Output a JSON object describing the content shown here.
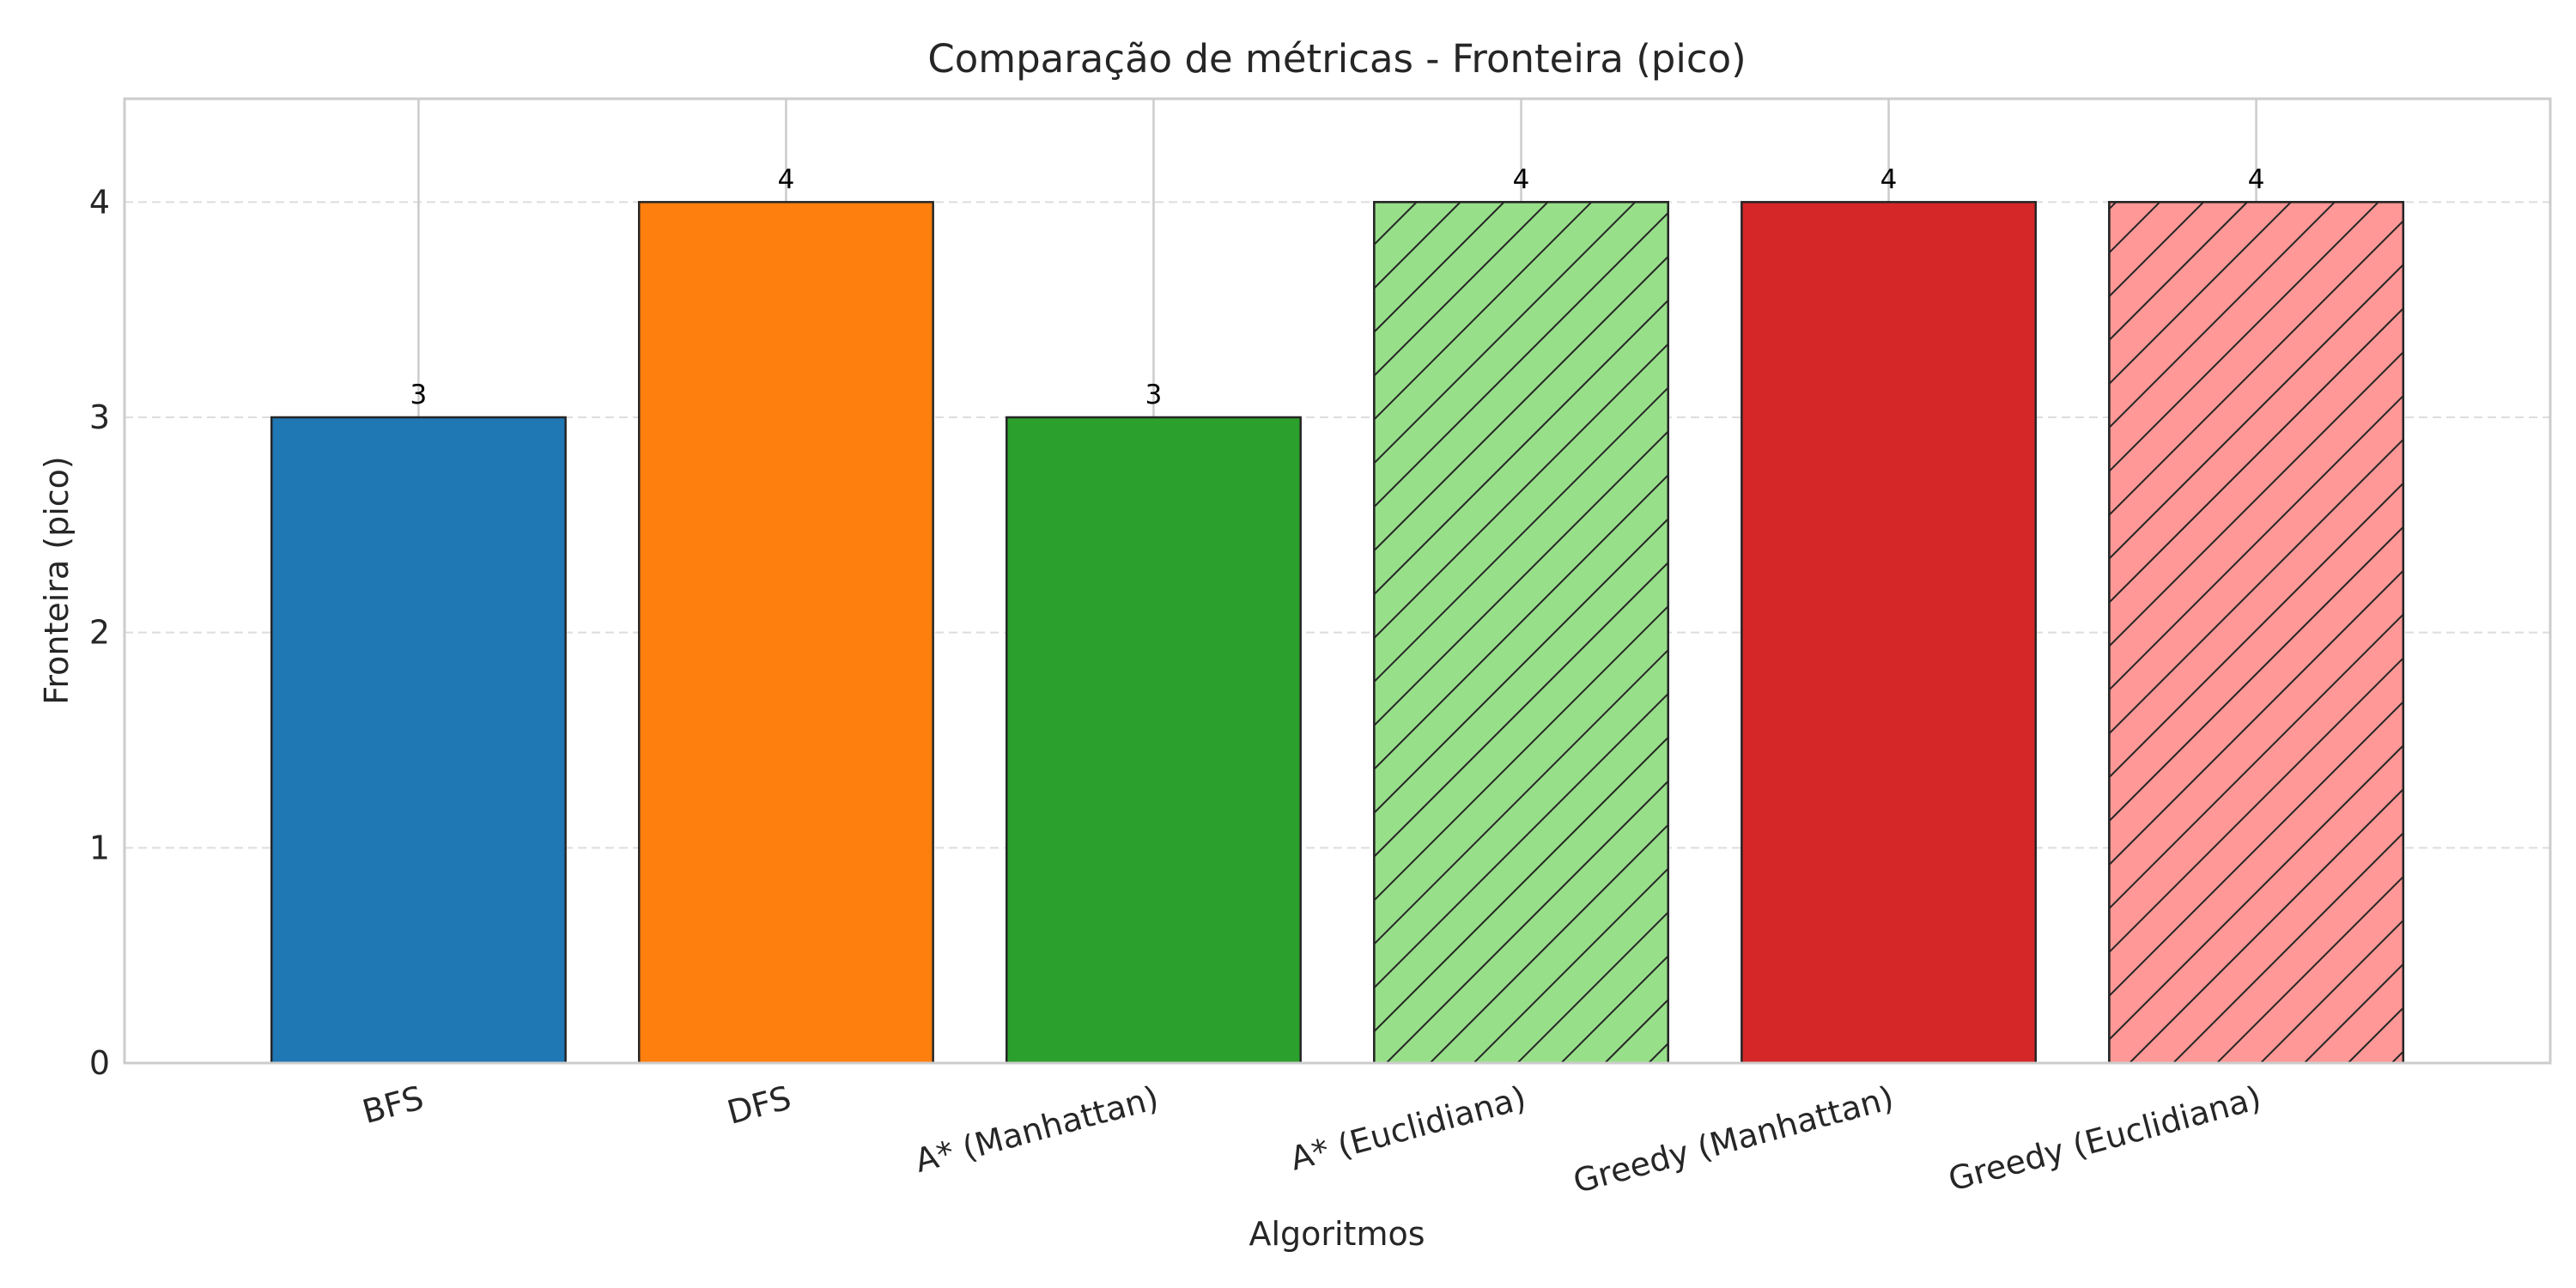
{
  "chart_data": {
    "type": "bar",
    "title": "Comparação de métricas - Fronteira (pico)",
    "xlabel": "Algoritmos",
    "ylabel": "Fronteira (pico)",
    "categories": [
      "BFS",
      "DFS",
      "A* (Manhattan)",
      "A* (Euclidiana)",
      "Greedy (Manhattan)",
      "Greedy (Euclidiana)"
    ],
    "values": [
      3,
      4,
      3,
      4,
      4,
      4
    ],
    "data_labels": [
      "3",
      "4",
      "3",
      "4",
      "4",
      "4"
    ],
    "colors": [
      "#1f77b4",
      "#ff7f0e",
      "#2ca02c",
      "#98df8a",
      "#d62728",
      "#ff9896"
    ],
    "hatched": [
      false,
      false,
      false,
      true,
      false,
      true
    ],
    "ylim": [
      0,
      4.48
    ],
    "yticks": [
      0,
      1,
      2,
      3,
      4
    ],
    "xtick_rotation_deg": -15,
    "grid": {
      "y": true,
      "y_style": "dashed",
      "x": true,
      "x_style": "solid"
    },
    "legend": "none",
    "style": {
      "edge_color": "#262626",
      "grid_color": "#cccccc",
      "y_grid_color": "#dddddd",
      "spine_color": "#cccccc",
      "hatch_color": "#262626"
    }
  }
}
